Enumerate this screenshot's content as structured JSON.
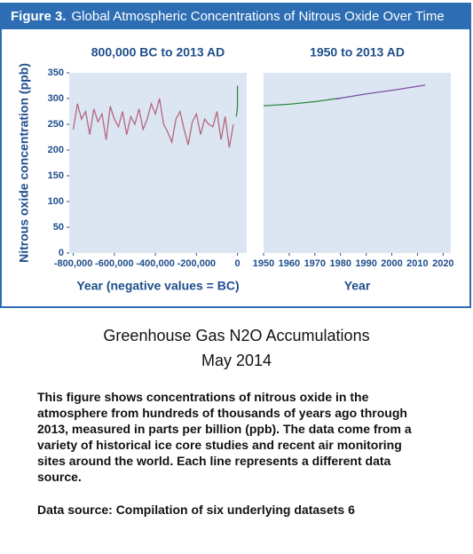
{
  "header": {
    "label": "Figure 3.",
    "title": "Global Atmospheric Concentrations of Nitrous Oxide Over Time"
  },
  "chart_data": [
    {
      "type": "line",
      "title": "800,000 BC to 2013 AD",
      "xlabel": "Year (negative values = BC)",
      "ylabel": "Nitrous oxide concentration (ppb)",
      "xlim": [
        -820000,
        45000
      ],
      "ylim": [
        0,
        350
      ],
      "xticks": [
        {
          "value": -800000,
          "label": "-800,000"
        },
        {
          "value": -600000,
          "label": "-600,000"
        },
        {
          "value": -400000,
          "label": "-400,000"
        },
        {
          "value": -200000,
          "label": "-200,000"
        },
        0
      ],
      "yticks": [
        0,
        50,
        100,
        150,
        200,
        250,
        300,
        350
      ],
      "series": [
        {
          "color": "#b5677f",
          "x": [
            -800000,
            -780000,
            -760000,
            -740000,
            -720000,
            -700000,
            -680000,
            -660000,
            -640000,
            -620000,
            -600000,
            -580000,
            -560000,
            -540000,
            -520000,
            -500000,
            -480000,
            -460000,
            -440000,
            -420000,
            -400000,
            -380000,
            -360000,
            -340000,
            -320000,
            -300000,
            -280000,
            -260000,
            -240000,
            -220000,
            -200000,
            -180000,
            -160000,
            -140000,
            -120000,
            -100000,
            -80000,
            -60000,
            -40000,
            -20000
          ],
          "values": [
            240,
            290,
            260,
            275,
            230,
            280,
            255,
            270,
            220,
            285,
            260,
            245,
            275,
            230,
            265,
            250,
            280,
            240,
            260,
            290,
            270,
            300,
            250,
            235,
            215,
            260,
            275,
            240,
            210,
            255,
            270,
            230,
            260,
            250,
            245,
            275,
            220,
            265,
            205,
            250
          ]
        },
        {
          "color": "#2e8b3e",
          "x": [
            -6000,
            -2000,
            0,
            0
          ],
          "values": [
            265,
            275,
            285,
            325
          ]
        }
      ]
    },
    {
      "type": "line",
      "title": "1950 to 2013 AD",
      "xlabel": "Year",
      "xlim": [
        1950,
        2023
      ],
      "ylim": [
        0,
        350
      ],
      "xticks": [
        1950,
        1960,
        1970,
        1980,
        1990,
        2000,
        2010,
        2020
      ],
      "series": [
        {
          "color": "#2e8b3e",
          "x": [
            1950,
            1960,
            1970,
            1980
          ],
          "values": [
            286,
            289,
            294,
            301
          ]
        },
        {
          "color": "#7a4fa3",
          "x": [
            1978,
            1990,
            2000,
            2013
          ],
          "values": [
            299,
            309,
            316,
            326
          ]
        }
      ]
    }
  ],
  "caption": {
    "title": "Greenhouse Gas N2O Accumulations",
    "date": "May 2014",
    "body": "This figure shows concentrations of nitrous oxide in the atmosphere from hundreds of thousands of years ago through 2013, measured in parts per billion (ppb). The data come from a variety of historical ice core studies and recent air monitoring sites around the world. Each line represents a different data source.",
    "source": "Data source: Compilation of six underlying datasets 6"
  }
}
